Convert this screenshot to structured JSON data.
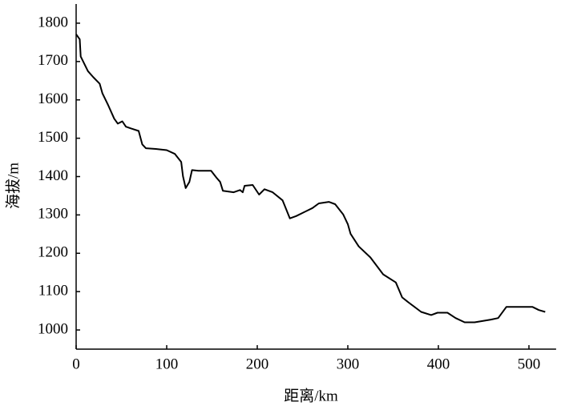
{
  "chart_data": {
    "type": "line",
    "xlabel": "距离/km",
    "ylabel": "海拔/m",
    "xlim": [
      0,
      530
    ],
    "ylim": [
      950,
      1850
    ],
    "xticks": [
      0,
      100,
      200,
      300,
      400,
      500
    ],
    "yticks": [
      1000,
      1100,
      1200,
      1300,
      1400,
      1500,
      1600,
      1700,
      1800
    ],
    "grid": false,
    "series": [
      {
        "color": "#000000",
        "x": [
          0,
          4,
          5,
          13,
          19,
          26,
          29,
          35,
          42,
          46,
          51,
          55,
          60,
          69,
          73,
          77,
          88,
          100,
          109,
          116,
          118,
          121,
          125,
          128,
          135,
          149,
          155,
          159,
          162,
          174,
          181,
          184,
          186,
          195,
          202,
          208,
          217,
          228,
          236,
          243,
          261,
          268,
          279,
          286,
          295,
          300,
          303,
          312,
          325,
          339,
          353,
          360,
          367,
          381,
          392,
          399,
          410,
          419,
          429,
          440,
          458,
          466,
          475,
          487,
          504,
          511,
          518
        ],
        "values": [
          1771,
          1758,
          1713,
          1675,
          1659,
          1642,
          1617,
          1588,
          1551,
          1538,
          1544,
          1530,
          1526,
          1519,
          1484,
          1474,
          1472,
          1469,
          1459,
          1438,
          1401,
          1370,
          1386,
          1417,
          1415,
          1415,
          1397,
          1386,
          1363,
          1359,
          1365,
          1359,
          1376,
          1378,
          1353,
          1367,
          1359,
          1338,
          1291,
          1297,
          1318,
          1330,
          1334,
          1328,
          1301,
          1276,
          1251,
          1218,
          1189,
          1145,
          1124,
          1085,
          1072,
          1047,
          1039,
          1045,
          1045,
          1031,
          1020,
          1020,
          1027,
          1031,
          1060,
          1060,
          1060,
          1052,
          1047
        ]
      }
    ]
  }
}
